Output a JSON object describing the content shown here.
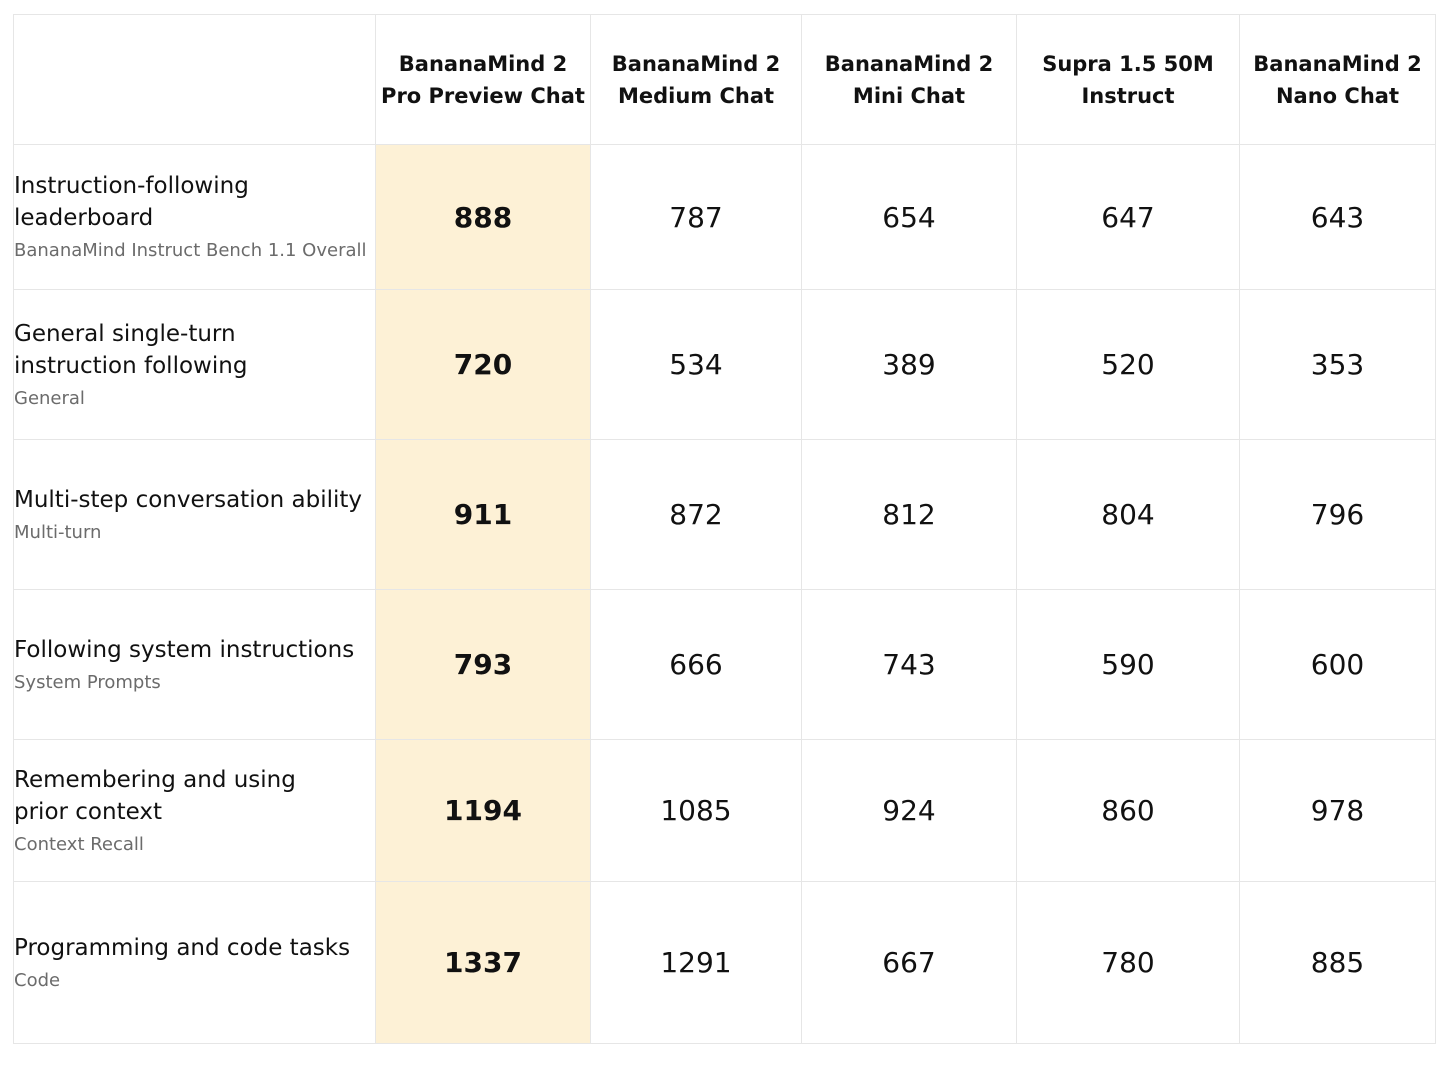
{
  "chart_data": {
    "type": "table",
    "columns": [
      "BananaMind 2\nPro Preview Chat",
      "BananaMind 2\nMedium Chat",
      "BananaMind 2\nMini Chat",
      "Supra 1.5 50M\nInstruct",
      "BananaMind 2\nNano Chat"
    ],
    "highlight_column": 0,
    "highlight_color": "#fdf1d6",
    "rows": [
      {
        "title": "Instruction-following leaderboard",
        "subtitle": "BananaMind Instruct Bench 1.1 Overall",
        "values": [
          888,
          787,
          654,
          647,
          643
        ]
      },
      {
        "title": "General single-turn\ninstruction following",
        "subtitle": "General",
        "values": [
          720,
          534,
          389,
          520,
          353
        ]
      },
      {
        "title": "Multi-step conversation ability",
        "subtitle": "Multi-turn",
        "values": [
          911,
          872,
          812,
          804,
          796
        ]
      },
      {
        "title": "Following system instructions",
        "subtitle": "System Prompts",
        "values": [
          793,
          666,
          743,
          590,
          600
        ]
      },
      {
        "title": "Remembering and using\nprior context",
        "subtitle": "Context Recall",
        "values": [
          1194,
          1085,
          924,
          860,
          978
        ]
      },
      {
        "title": "Programming and code tasks",
        "subtitle": "Code",
        "values": [
          1337,
          1291,
          667,
          780,
          885
        ]
      }
    ]
  }
}
